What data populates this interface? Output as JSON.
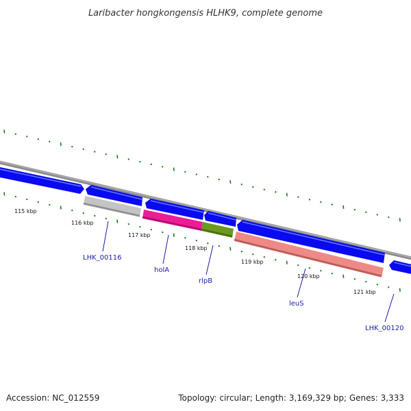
{
  "title": "Laribacter hongkongensis HLHK9, complete genome",
  "footer": {
    "accession": "Accession: NC_012559",
    "summary": "Topology: circular; Length: 3,169,329 bp; Genes: 3,333"
  },
  "colors": {
    "backbone": "#8c8c8c",
    "cds": "#0a0af0",
    "tick": "#1a7a1a",
    "label": "#1a1aa6"
  },
  "ticks": [
    {
      "label": "115 kbp"
    },
    {
      "label": "116 kbp"
    },
    {
      "label": "117 kbp"
    },
    {
      "label": "118 kbp"
    },
    {
      "label": "119 kbp"
    },
    {
      "label": "120 kbp"
    },
    {
      "label": "121 kbp"
    }
  ],
  "features": [
    {
      "name": "LHK_00116",
      "color": "#c4c4c4"
    },
    {
      "name": "holA",
      "color": "#ee1c96"
    },
    {
      "name": "rlpB",
      "color": "#6b9a1e"
    },
    {
      "name": "leuS",
      "color": "#ee8a86"
    },
    {
      "name": "LHK_00120",
      "color": "#0a0af0"
    }
  ]
}
